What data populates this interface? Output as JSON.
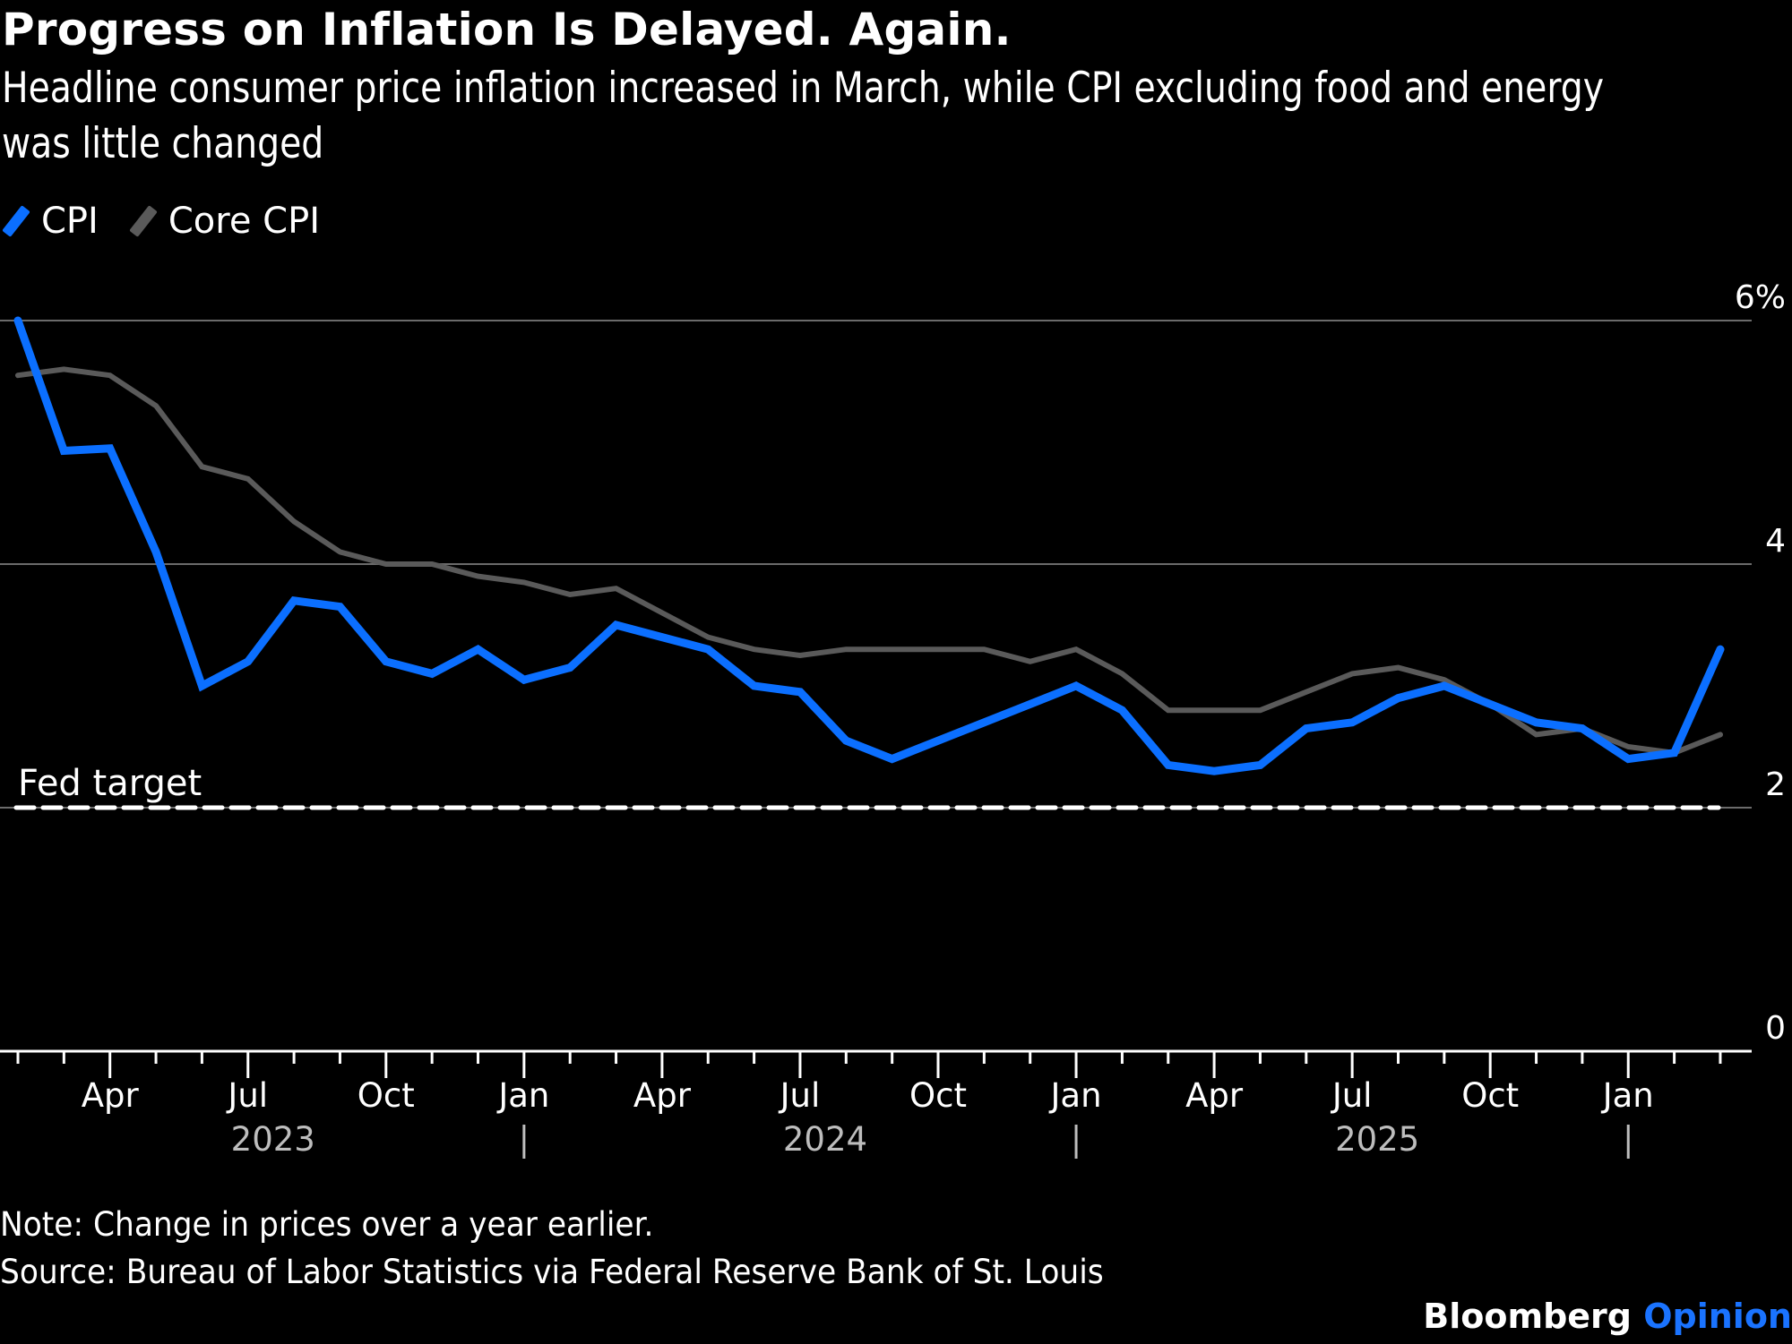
{
  "header": {
    "title": "Progress on Inflation Is Delayed. Again.",
    "subtitle": "Headline consumer price inflation increased in March, while CPI excluding food and energy was little changed"
  },
  "legend": [
    {
      "label": "CPI",
      "color": "#0b6fff"
    },
    {
      "label": "Core CPI",
      "color": "#5a5a5a"
    }
  ],
  "footer": {
    "note": "Note: Change in prices over a year earlier.",
    "source": "Source: Bureau of Labor Statistics via Federal Reserve Bank of St. Louis",
    "brand_main": "Bloomberg",
    "brand_accent": "Opinion"
  },
  "chart_data": {
    "type": "line",
    "title": "Progress on Inflation Is Delayed. Again.",
    "xlabel": "",
    "ylabel": "",
    "ylim": [
      0,
      6
    ],
    "yticks": [
      {
        "value": 6,
        "label": "6%"
      },
      {
        "value": 4,
        "label": "4"
      },
      {
        "value": 2,
        "label": "2"
      },
      {
        "value": 0,
        "label": "0"
      }
    ],
    "grid": true,
    "legend_position": "top-left",
    "x_start": "2023-02",
    "x_end": "2026-03",
    "month_tick_labels": [
      {
        "month_index": 2,
        "label": "Apr"
      },
      {
        "month_index": 5,
        "label": "Jul"
      },
      {
        "month_index": 8,
        "label": "Oct"
      },
      {
        "month_index": 11,
        "label": "Jan"
      },
      {
        "month_index": 14,
        "label": "Apr"
      },
      {
        "month_index": 17,
        "label": "Jul"
      },
      {
        "month_index": 20,
        "label": "Oct"
      },
      {
        "month_index": 23,
        "label": "Jan"
      },
      {
        "month_index": 26,
        "label": "Apr"
      },
      {
        "month_index": 29,
        "label": "Jul"
      },
      {
        "month_index": 32,
        "label": "Oct"
      },
      {
        "month_index": 35,
        "label": "Jan"
      }
    ],
    "year_labels": [
      {
        "month_index": 5,
        "label": "2023"
      },
      {
        "month_index": 17,
        "label": "2024"
      },
      {
        "month_index": 29,
        "label": "2025"
      }
    ],
    "year_separators": [
      11,
      23,
      35
    ],
    "reference_line": {
      "value": 2,
      "label": "Fed target",
      "style": "dashed"
    },
    "x": [
      "2023-02",
      "2023-03",
      "2023-04",
      "2023-05",
      "2023-06",
      "2023-07",
      "2023-08",
      "2023-09",
      "2023-10",
      "2023-11",
      "2023-12",
      "2024-01",
      "2024-02",
      "2024-03",
      "2024-04",
      "2024-05",
      "2024-06",
      "2024-07",
      "2024-08",
      "2024-09",
      "2024-10",
      "2024-11",
      "2024-12",
      "2025-01",
      "2025-02",
      "2025-03",
      "2025-04",
      "2025-05",
      "2025-06",
      "2025-07",
      "2025-08",
      "2025-09",
      "2025-10",
      "2025-11",
      "2025-12",
      "2026-01",
      "2026-02",
      "2026-03"
    ],
    "series": [
      {
        "name": "CPI",
        "color": "#0b6fff",
        "values": [
          6.0,
          4.93,
          4.95,
          4.1,
          3.0,
          3.2,
          3.7,
          3.65,
          3.2,
          3.1,
          3.3,
          3.05,
          3.15,
          3.5,
          3.4,
          3.3,
          3.0,
          2.95,
          2.55,
          2.4,
          2.55,
          2.7,
          2.85,
          3.0,
          2.8,
          2.35,
          2.3,
          2.35,
          2.65,
          2.7,
          2.9,
          3.0,
          2.85,
          2.7,
          2.65,
          2.4,
          2.45,
          3.3
        ]
      },
      {
        "name": "Core CPI",
        "color": "#5a5a5a",
        "values": [
          5.55,
          5.6,
          5.55,
          5.3,
          4.8,
          4.7,
          4.35,
          4.1,
          4.0,
          4.0,
          3.9,
          3.85,
          3.75,
          3.8,
          3.6,
          3.4,
          3.3,
          3.25,
          3.3,
          3.3,
          3.3,
          3.3,
          3.2,
          3.3,
          3.1,
          2.8,
          2.8,
          2.8,
          2.95,
          3.1,
          3.15,
          3.05,
          2.85,
          2.6,
          2.65,
          2.5,
          2.45,
          2.6
        ]
      }
    ]
  }
}
